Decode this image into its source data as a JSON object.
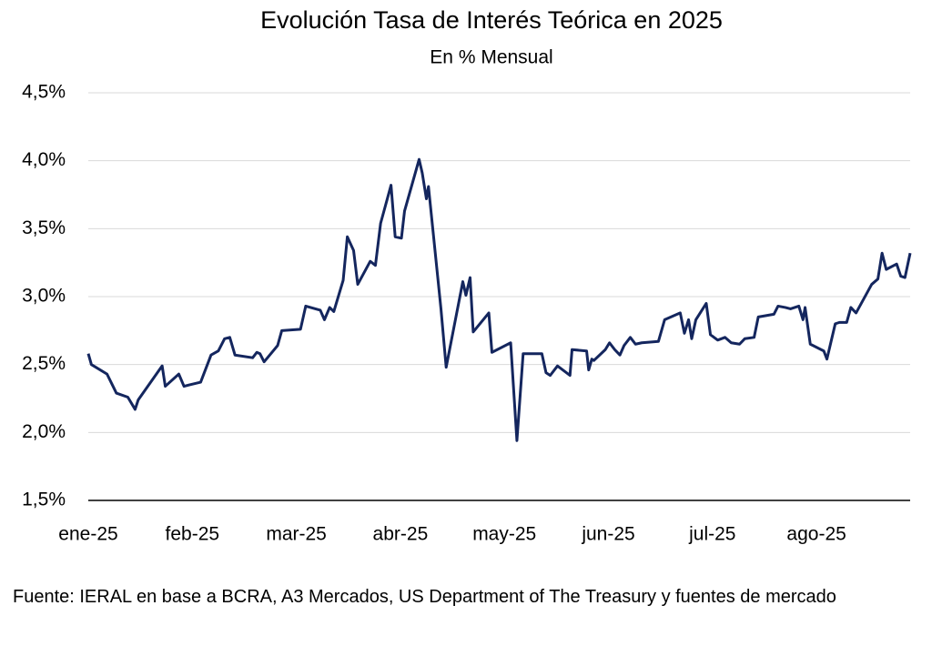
{
  "chart_data": {
    "type": "line",
    "title": "Evolución Tasa de Interés Teórica en 2025",
    "subtitle": "En % Mensual",
    "source": "Fuente: IERAL en base a BCRA, A3 Mercados, US Department of The Treasury y fuentes de mercado",
    "x": [
      0,
      0.03,
      0.18,
      0.27,
      0.38,
      0.45,
      0.48,
      0.71,
      0.74,
      0.87,
      0.92,
      0.97,
      1.08,
      1.18,
      1.25,
      1.31,
      1.36,
      1.41,
      1.58,
      1.62,
      1.65,
      1.69,
      1.82,
      1.86,
      2.04,
      2.09,
      2.23,
      2.27,
      2.32,
      2.36,
      2.45,
      2.49,
      2.55,
      2.59,
      2.71,
      2.76,
      2.81,
      2.91,
      2.95,
      3.01,
      3.04,
      3.18,
      3.21,
      3.25,
      3.27,
      3.39,
      3.44,
      3.6,
      3.63,
      3.67,
      3.7,
      3.85,
      3.88,
      4.06,
      4.12,
      4.18,
      4.36,
      4.4,
      4.44,
      4.51,
      4.63,
      4.65,
      4.79,
      4.81,
      4.84,
      4.86,
      4.97,
      5.01,
      5.06,
      5.11,
      5.15,
      5.21,
      5.26,
      5.32,
      5.48,
      5.54,
      5.69,
      5.73,
      5.77,
      5.8,
      5.84,
      5.94,
      5.98,
      6.05,
      6.12,
      6.18,
      6.26,
      6.31,
      6.4,
      6.44,
      6.59,
      6.63,
      6.7,
      6.75,
      6.83,
      6.87,
      6.89,
      6.94,
      7.07,
      7.1,
      7.18,
      7.22,
      7.29,
      7.33,
      7.38,
      7.53,
      7.59,
      7.63,
      7.67,
      7.77,
      7.81,
      7.85,
      7.9
    ],
    "series": [
      {
        "name": "Tasa de Interés Teórica",
        "color": "#14265e",
        "values": [
          2.58,
          2.5,
          2.43,
          2.29,
          2.26,
          2.17,
          2.24,
          2.49,
          2.34,
          2.43,
          2.34,
          2.35,
          2.37,
          2.57,
          2.6,
          2.69,
          2.7,
          2.57,
          2.55,
          2.59,
          2.58,
          2.52,
          2.64,
          2.75,
          2.76,
          2.93,
          2.9,
          2.83,
          2.92,
          2.89,
          3.12,
          3.44,
          3.34,
          3.09,
          3.26,
          3.23,
          3.54,
          3.82,
          3.44,
          3.43,
          3.63,
          4.01,
          3.91,
          3.72,
          3.81,
          2.91,
          2.48,
          3.11,
          3.01,
          3.14,
          2.74,
          2.88,
          2.59,
          2.66,
          1.94,
          2.58,
          2.58,
          2.44,
          2.42,
          2.49,
          2.42,
          2.61,
          2.6,
          2.46,
          2.54,
          2.53,
          2.61,
          2.66,
          2.61,
          2.57,
          2.64,
          2.7,
          2.65,
          2.66,
          2.67,
          2.83,
          2.88,
          2.73,
          2.83,
          2.69,
          2.83,
          2.95,
          2.72,
          2.68,
          2.7,
          2.66,
          2.65,
          2.69,
          2.7,
          2.85,
          2.87,
          2.93,
          2.92,
          2.91,
          2.93,
          2.83,
          2.92,
          2.65,
          2.6,
          2.54,
          2.8,
          2.81,
          2.81,
          2.92,
          2.88,
          3.09,
          3.13,
          3.32,
          3.2,
          3.24,
          3.15,
          3.14,
          3.32
        ]
      }
    ],
    "xlim": [
      0,
      7.9
    ],
    "xticks": [
      {
        "value": 0,
        "label": "ene-25"
      },
      {
        "value": 1,
        "label": "feb-25"
      },
      {
        "value": 2,
        "label": "mar-25"
      },
      {
        "value": 3,
        "label": "abr-25"
      },
      {
        "value": 4,
        "label": "may-25"
      },
      {
        "value": 5,
        "label": "jun-25"
      },
      {
        "value": 6,
        "label": "jul-25"
      },
      {
        "value": 7,
        "label": "ago-25"
      }
    ],
    "ylim": [
      1.5,
      4.5
    ],
    "yticks": [
      {
        "value": 1.5,
        "label": "1,5%"
      },
      {
        "value": 2,
        "label": "2,0%"
      },
      {
        "value": 2.5,
        "label": "2,5%"
      },
      {
        "value": 3,
        "label": "3,0%"
      },
      {
        "value": 3.5,
        "label": "3,5%"
      },
      {
        "value": 4,
        "label": "4,0%"
      },
      {
        "value": 4.5,
        "label": "4,5%"
      }
    ],
    "grid": true
  }
}
